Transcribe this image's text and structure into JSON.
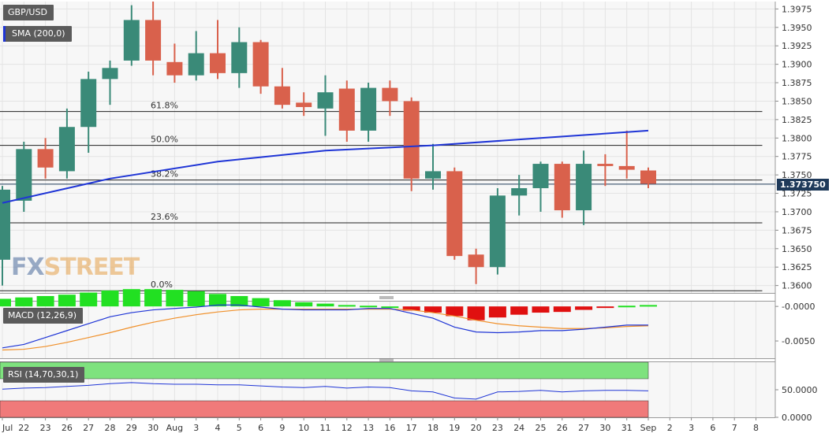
{
  "colors": {
    "bull": "#3a8a78",
    "bear": "#d9614c",
    "sma": "#1f35d6",
    "price_tag": "#1f3a5a",
    "macd_pos": "#22e022",
    "macd_neg": "#e01010",
    "macd_line": "#1f35d6",
    "signal_line": "#f0902a",
    "rsi_line": "#1f35d6",
    "rsi_upper": "#7ee27e",
    "rsi_lower": "#f07a7a",
    "grid": "#e4e4e4"
  },
  "legends": {
    "pair": "GBP/USD",
    "sma": "SMA (200,0)",
    "macd": "MACD (12,26,9)",
    "rsi": "RSI (14,70,30,1)"
  },
  "logo": {
    "part1": "FX",
    "part2": "STREET"
  },
  "price_tag": "1.373750",
  "chart_data": [
    {
      "type": "candlestick",
      "title": "GBP/USD",
      "ylim": [
        1.359,
        1.3985
      ],
      "y_ticks": [
        "1.3975",
        "1.3950",
        "1.3925",
        "1.3900",
        "1.3875",
        "1.3850",
        "1.3825",
        "1.3800",
        "1.3775",
        "1.3750",
        "1.3725",
        "1.3700",
        "1.3675",
        "1.3650",
        "1.3625",
        "1.3600"
      ],
      "x_labels": [
        "Jul",
        "22",
        "23",
        "26",
        "27",
        "28",
        "29",
        "30",
        "Aug",
        "3",
        "4",
        "5",
        "6",
        "9",
        "10",
        "11",
        "12",
        "13",
        "16",
        "17",
        "18",
        "19",
        "20",
        "23",
        "24",
        "25",
        "26",
        "27",
        "30",
        "31",
        "Sep",
        "2",
        "3",
        "6",
        "7",
        "8"
      ],
      "candles": [
        {
          "o": 1.3635,
          "h": 1.3735,
          "l": 1.36,
          "c": 1.373
        },
        {
          "o": 1.3715,
          "h": 1.3795,
          "l": 1.37,
          "c": 1.3785
        },
        {
          "o": 1.3785,
          "h": 1.38,
          "l": 1.3745,
          "c": 1.376
        },
        {
          "o": 1.3755,
          "h": 1.384,
          "l": 1.3745,
          "c": 1.3815
        },
        {
          "o": 1.3815,
          "h": 1.389,
          "l": 1.378,
          "c": 1.388
        },
        {
          "o": 1.388,
          "h": 1.3905,
          "l": 1.3845,
          "c": 1.3895
        },
        {
          "o": 1.3905,
          "h": 1.398,
          "l": 1.3898,
          "c": 1.396
        },
        {
          "o": 1.396,
          "h": 1.3985,
          "l": 1.3885,
          "c": 1.3905
        },
        {
          "o": 1.3903,
          "h": 1.3928,
          "l": 1.3875,
          "c": 1.3885
        },
        {
          "o": 1.3885,
          "h": 1.3945,
          "l": 1.3878,
          "c": 1.3915
        },
        {
          "o": 1.3915,
          "h": 1.396,
          "l": 1.388,
          "c": 1.3888
        },
        {
          "o": 1.3888,
          "h": 1.395,
          "l": 1.3868,
          "c": 1.393
        },
        {
          "o": 1.393,
          "h": 1.3933,
          "l": 1.386,
          "c": 1.387
        },
        {
          "o": 1.387,
          "h": 1.3895,
          "l": 1.384,
          "c": 1.3845
        },
        {
          "o": 1.3848,
          "h": 1.3862,
          "l": 1.383,
          "c": 1.3842
        },
        {
          "o": 1.384,
          "h": 1.3885,
          "l": 1.3803,
          "c": 1.3862
        },
        {
          "o": 1.3867,
          "h": 1.3878,
          "l": 1.3795,
          "c": 1.381
        },
        {
          "o": 1.381,
          "h": 1.3875,
          "l": 1.3795,
          "c": 1.3868
        },
        {
          "o": 1.3868,
          "h": 1.3878,
          "l": 1.383,
          "c": 1.385
        },
        {
          "o": 1.385,
          "h": 1.3855,
          "l": 1.3728,
          "c": 1.3745
        },
        {
          "o": 1.3745,
          "h": 1.3792,
          "l": 1.373,
          "c": 1.3755
        },
        {
          "o": 1.3755,
          "h": 1.376,
          "l": 1.3635,
          "c": 1.364
        },
        {
          "o": 1.3642,
          "h": 1.365,
          "l": 1.3602,
          "c": 1.3625
        },
        {
          "o": 1.3625,
          "h": 1.3732,
          "l": 1.3615,
          "c": 1.3722
        },
        {
          "o": 1.3722,
          "h": 1.375,
          "l": 1.3695,
          "c": 1.3732
        },
        {
          "o": 1.3732,
          "h": 1.3768,
          "l": 1.37,
          "c": 1.3765
        },
        {
          "o": 1.3765,
          "h": 1.3768,
          "l": 1.3692,
          "c": 1.3702
        },
        {
          "o": 1.3702,
          "h": 1.3783,
          "l": 1.3682,
          "c": 1.3765
        },
        {
          "o": 1.3765,
          "h": 1.3778,
          "l": 1.3735,
          "c": 1.3762
        },
        {
          "o": 1.3762,
          "h": 1.381,
          "l": 1.3745,
          "c": 1.3757
        },
        {
          "o": 1.3756,
          "h": 1.376,
          "l": 1.3732,
          "c": 1.3738
        }
      ],
      "sma_200": [
        {
          "i": 0,
          "v": 1.3712
        },
        {
          "i": 5,
          "v": 1.3745
        },
        {
          "i": 10,
          "v": 1.3768
        },
        {
          "i": 15,
          "v": 1.3783
        },
        {
          "i": 20,
          "v": 1.379
        },
        {
          "i": 25,
          "v": 1.38
        },
        {
          "i": 30,
          "v": 1.381
        }
      ],
      "fibonacci": [
        {
          "label": "61.8%",
          "value": 1.3836
        },
        {
          "label": "50.0%",
          "value": 1.379
        },
        {
          "label": "38.2%",
          "value": 1.3743
        },
        {
          "label": "23.6%",
          "value": 1.3685
        },
        {
          "label": "0.0%",
          "value": 1.3593
        }
      ],
      "last_price": 1.37375
    },
    {
      "type": "bar",
      "title": "MACD (12,26,9)",
      "ylim": [
        -0.0075,
        0.0007
      ],
      "y_ticks": [
        "-0.0000",
        "-0.0050"
      ],
      "histogram": [
        0.0011,
        0.0013,
        0.0015,
        0.0017,
        0.002,
        0.0023,
        0.0025,
        0.0025,
        0.0024,
        0.0022,
        0.0018,
        0.0015,
        0.0012,
        0.0009,
        0.0006,
        0.0004,
        0.0002,
        0.0001,
        0.0,
        -0.0006,
        -0.0009,
        -0.0014,
        -0.002,
        -0.0016,
        -0.0012,
        -0.0009,
        -0.0008,
        -0.0005,
        -0.0001,
        0.0001,
        0.0002
      ],
      "macd_line": [
        -0.006,
        -0.0055,
        -0.0045,
        -0.0035,
        -0.0025,
        -0.0015,
        -0.0009,
        -0.0005,
        -0.0003,
        -0.0001,
        0.0002,
        0.0002,
        -0.0001,
        -0.0004,
        -0.0005,
        -0.0005,
        -0.0005,
        -0.0003,
        -0.0003,
        -0.001,
        -0.0017,
        -0.003,
        -0.0037,
        -0.0038,
        -0.0037,
        -0.0035,
        -0.0035,
        -0.0033,
        -0.003,
        -0.0027,
        -0.0027
      ],
      "signal_line": [
        -0.0063,
        -0.0062,
        -0.0058,
        -0.0052,
        -0.0045,
        -0.0038,
        -0.003,
        -0.0023,
        -0.0017,
        -0.0012,
        -0.0008,
        -0.0005,
        -0.0004,
        -0.0004,
        -0.0004,
        -0.0004,
        -0.0004,
        -0.0004,
        -0.0004,
        -0.0005,
        -0.0009,
        -0.0014,
        -0.002,
        -0.0025,
        -0.0028,
        -0.003,
        -0.0032,
        -0.0032,
        -0.0031,
        -0.0029,
        -0.0028
      ]
    },
    {
      "type": "line",
      "title": "RSI (14,70,30,1)",
      "ylim": [
        0,
        100
      ],
      "y_ticks": [
        "50.0000",
        "0.0000"
      ],
      "overbought": 70,
      "oversold": 30,
      "values": [
        51,
        53,
        54,
        56,
        58,
        61,
        63,
        61,
        60,
        60,
        59,
        59,
        57,
        55,
        54,
        56,
        53,
        55,
        54,
        48,
        46,
        35,
        33,
        46,
        47,
        49,
        46,
        48,
        49,
        49,
        48
      ]
    }
  ]
}
